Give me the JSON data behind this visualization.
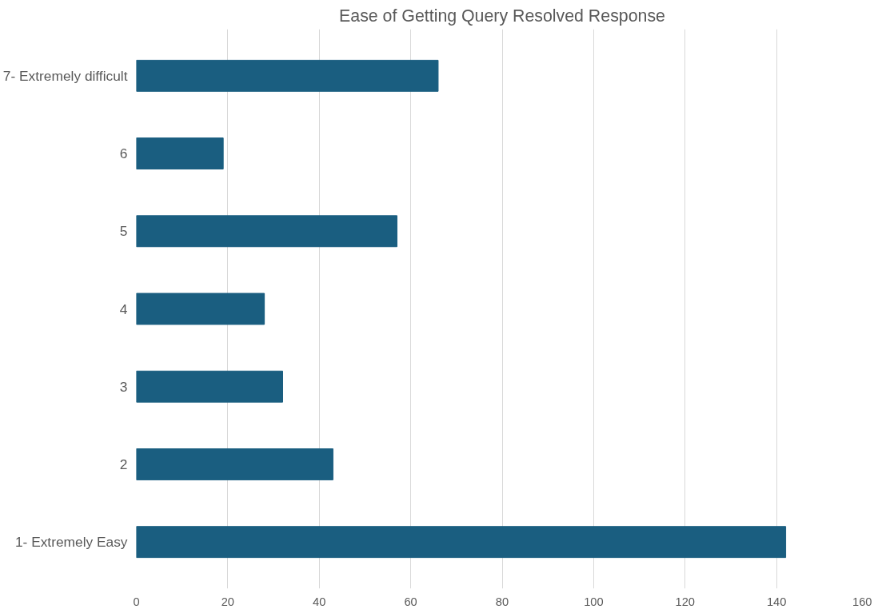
{
  "chart_data": {
    "type": "bar",
    "orientation": "horizontal",
    "title": "Ease of Getting Query Resolved Response",
    "categories": [
      "7- Extremely difficult",
      "6",
      "5",
      "4",
      "3",
      "2",
      "1- Extremely Easy"
    ],
    "values": [
      66,
      19,
      57,
      28,
      32,
      43,
      142
    ],
    "color": "#1a5e80",
    "xlim": [
      0,
      160
    ],
    "xticks": [
      0,
      20,
      40,
      60,
      80,
      100,
      120,
      140,
      160
    ],
    "grid": "x"
  }
}
